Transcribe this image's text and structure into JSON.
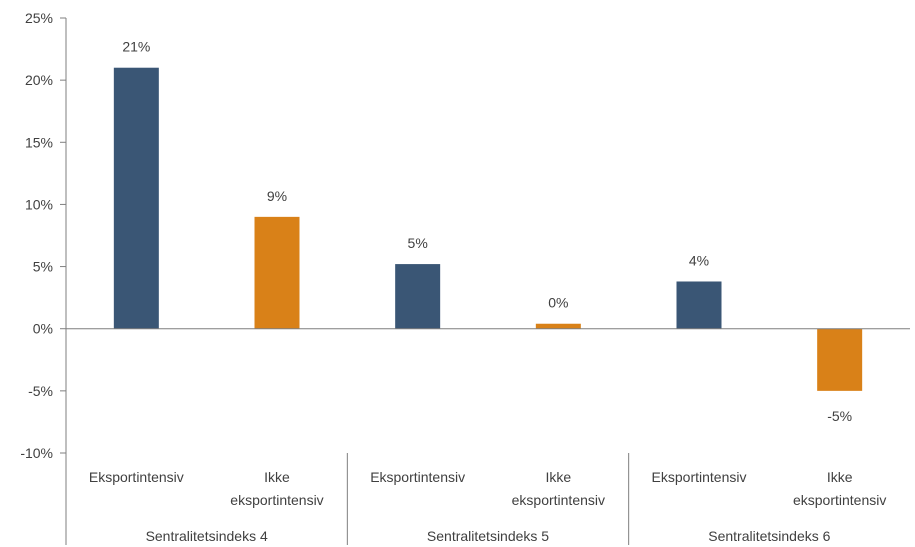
{
  "chart_data": {
    "type": "bar",
    "title": "",
    "xlabel": "",
    "ylabel": "",
    "ylim": [
      -10,
      25
    ],
    "yticks": [
      25,
      20,
      15,
      10,
      5,
      0,
      -5,
      -10
    ],
    "ytick_labels": [
      "25%",
      "20%",
      "15%",
      "10%",
      "5%",
      "0%",
      "-5%",
      "-10%"
    ],
    "grid": false,
    "legend": "none",
    "groups": [
      {
        "label": "Sentralitetsindeks 4",
        "categories": [
          {
            "lines": [
              "Eksportintensiv"
            ]
          },
          {
            "lines": [
              "Ikke",
              "eksportintensiv"
            ]
          }
        ],
        "values": [
          21,
          9
        ],
        "data_labels": [
          "21%",
          "9%"
        ]
      },
      {
        "label": "Sentralitetsindeks 5",
        "categories": [
          {
            "lines": [
              "Eksportintensiv"
            ]
          },
          {
            "lines": [
              "Ikke",
              "eksportintensiv"
            ]
          }
        ],
        "values": [
          5.2,
          0.4
        ],
        "data_labels": [
          "5%",
          "0%"
        ]
      },
      {
        "label": "Sentralitetsindeks 6",
        "categories": [
          {
            "lines": [
              "Eksportintensiv"
            ]
          },
          {
            "lines": [
              "Ikke",
              "eksportintensiv"
            ]
          }
        ],
        "values": [
          3.8,
          -5
        ],
        "data_labels": [
          "4%",
          "-5%"
        ]
      }
    ],
    "colors": {
      "eksportintensiv": "#3a5675",
      "ikke_eksportintensiv": "#d98118"
    }
  }
}
